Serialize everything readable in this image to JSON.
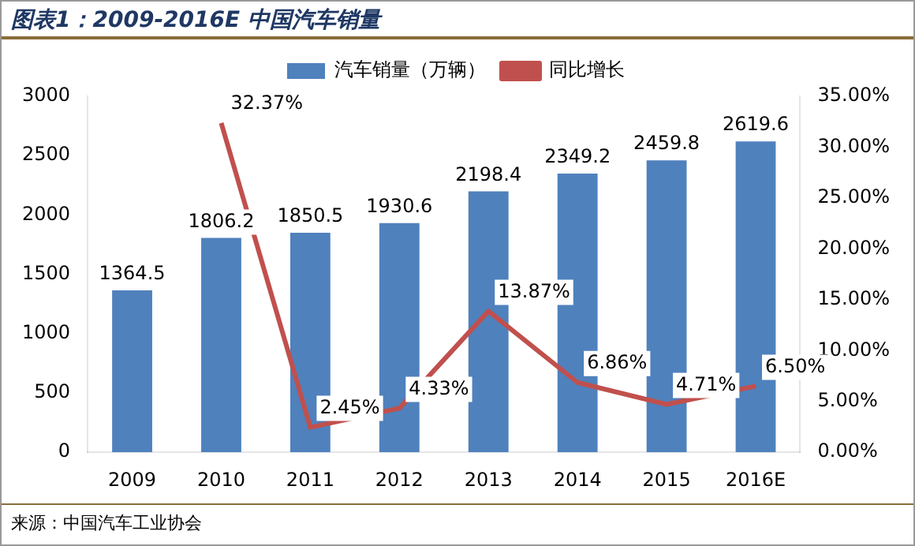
{
  "chart_data": {
    "type": "bar",
    "title": "图表1：2009-2016E 中国汽车销量",
    "categories": [
      "2009",
      "2010",
      "2011",
      "2012",
      "2013",
      "2014",
      "2015",
      "2016E"
    ],
    "series": [
      {
        "name": "汽车销量（万辆）",
        "color": "#4f81bd",
        "values": [
          1364.5,
          1806.2,
          1850.5,
          1930.6,
          2198.4,
          2349.2,
          2459.8,
          2619.6
        ],
        "value_labels": [
          "1364.5",
          "1806.2",
          "1850.5",
          "1930.6",
          "2198.4",
          "2349.2",
          "2459.8",
          "2619.6"
        ]
      },
      {
        "name": "同比增长",
        "type": "line",
        "axis": "y2",
        "color": "#c0504d",
        "marker": "none",
        "line_style": "solid",
        "values": [
          null,
          32.37,
          2.45,
          4.33,
          13.87,
          6.86,
          4.71,
          6.5
        ],
        "value_labels": [
          null,
          "32.37%",
          "2.45%",
          "4.33%",
          "13.87%",
          "6.86%",
          "4.71%",
          "6.50%"
        ]
      }
    ],
    "ylim": [
      0,
      3000
    ],
    "yticks": [
      0,
      500,
      1000,
      1500,
      2000,
      2500,
      3000
    ],
    "y2lim": [
      0,
      35
    ],
    "y2ticks": [
      {
        "value": 0,
        "label": "0.00%"
      },
      {
        "value": 5,
        "label": "5.00%"
      },
      {
        "value": 10,
        "label": "10.00%"
      },
      {
        "value": 15,
        "label": "15.00%"
      },
      {
        "value": 20,
        "label": "20.00%"
      },
      {
        "value": 25,
        "label": "25.00%"
      },
      {
        "value": 30,
        "label": "30.00%"
      },
      {
        "value": 35,
        "label": "35.00%"
      }
    ],
    "legend": "top",
    "annotations": [
      "来源：中国汽车工业协会"
    ]
  }
}
